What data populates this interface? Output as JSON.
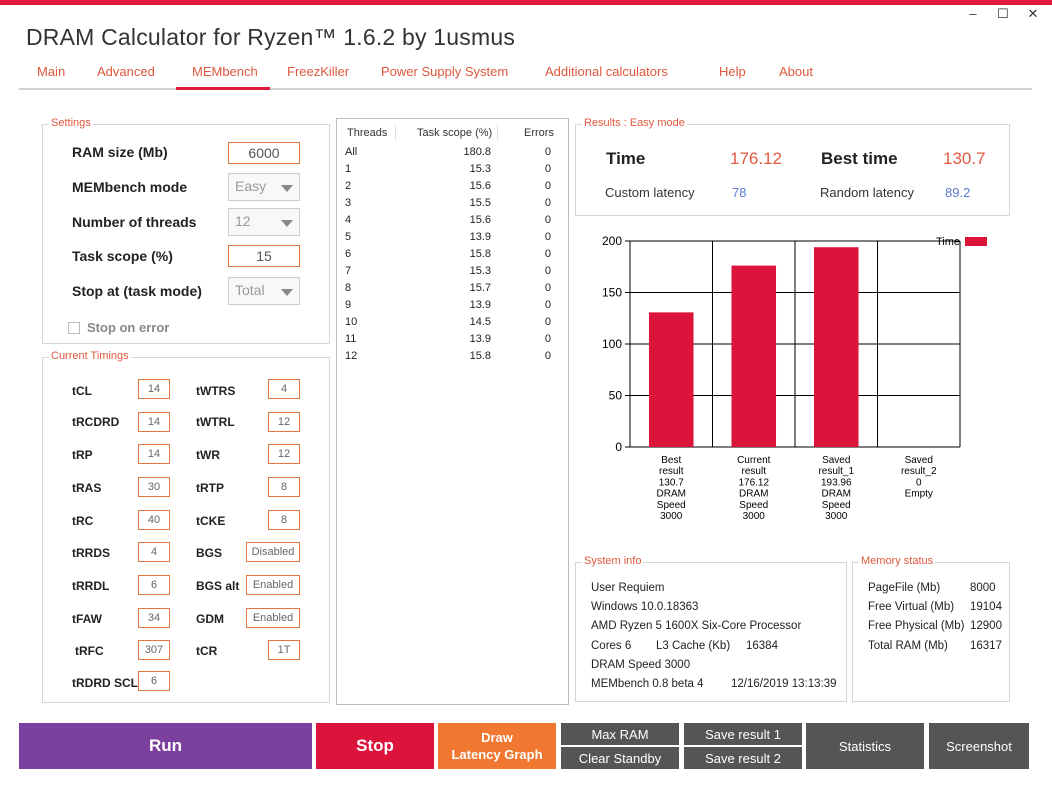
{
  "app": {
    "title": "DRAM Calculator for Ryzen™ 1.6.2 by 1usmus",
    "window_controls": [
      "–",
      "☐",
      "✕"
    ]
  },
  "tabs": [
    {
      "label": "Main"
    },
    {
      "label": "Advanced"
    },
    {
      "label": "MEMbench",
      "active": true
    },
    {
      "label": "FreezKiller"
    },
    {
      "label": "Power Supply System"
    },
    {
      "label": "Additional calculators"
    },
    {
      "label": "Help"
    },
    {
      "label": "About"
    }
  ],
  "settings": {
    "title": "Settings",
    "ram_size_label": "RAM size (Mb)",
    "ram_size_value": "6000",
    "mode_label": "MEMbench mode",
    "mode_value": "Easy",
    "threads_label": "Number of threads",
    "threads_value": "12",
    "task_scope_label": "Task scope (%)",
    "task_scope_value": "15",
    "stop_at_label": "Stop at (task mode)",
    "stop_at_value": "Total",
    "stop_on_error_label": "Stop on error"
  },
  "timings": {
    "title": "Current Timings",
    "left": [
      {
        "label": "tCL",
        "value": "14"
      },
      {
        "label": "tRCDRD",
        "value": "14"
      },
      {
        "label": "tRP",
        "value": "14"
      },
      {
        "label": "tRAS",
        "value": "30"
      },
      {
        "label": "tRC",
        "value": "40"
      },
      {
        "label": "tRRDS",
        "value": "4"
      },
      {
        "label": "tRRDL",
        "value": "6"
      },
      {
        "label": "tFAW",
        "value": "34"
      },
      {
        "label": "tRFC",
        "value": "307"
      },
      {
        "label": "tRDRD SCL",
        "value": "6"
      }
    ],
    "right": [
      {
        "label": "tWTRS",
        "value": "4"
      },
      {
        "label": "tWTRL",
        "value": "12"
      },
      {
        "label": "tWR",
        "value": "12"
      },
      {
        "label": "tRTP",
        "value": "8"
      },
      {
        "label": "tCKE",
        "value": "8"
      },
      {
        "label": "BGS",
        "value": "Disabled"
      },
      {
        "label": "BGS alt",
        "value": "Enabled"
      },
      {
        "label": "GDM",
        "value": "Enabled"
      },
      {
        "label": "tCR",
        "value": "1T"
      }
    ]
  },
  "threads_table": {
    "headers": [
      "Threads",
      "Task scope (%)",
      "Errors"
    ],
    "rows": [
      [
        "All",
        "180.8",
        "0"
      ],
      [
        "1",
        "15.3",
        "0"
      ],
      [
        "2",
        "15.6",
        "0"
      ],
      [
        "3",
        "15.5",
        "0"
      ],
      [
        "4",
        "15.6",
        "0"
      ],
      [
        "5",
        "13.9",
        "0"
      ],
      [
        "6",
        "15.8",
        "0"
      ],
      [
        "7",
        "15.3",
        "0"
      ],
      [
        "8",
        "15.7",
        "0"
      ],
      [
        "9",
        "13.9",
        "0"
      ],
      [
        "10",
        "14.5",
        "0"
      ],
      [
        "11",
        "13.9",
        "0"
      ],
      [
        "12",
        "15.8",
        "0"
      ]
    ]
  },
  "results": {
    "title": "Results : Easy mode",
    "time_label": "Time",
    "time_value": "176.12",
    "best_label": "Best time",
    "best_value": "130.7",
    "custom_latency_label": "Custom latency",
    "custom_latency_value": "78",
    "random_latency_label": "Random latency",
    "random_latency_value": "89.2"
  },
  "chart_data": {
    "type": "bar",
    "legend": "Time",
    "legend_position": "top-right",
    "bar_color": "#dc143c",
    "grid": true,
    "ylim": [
      0,
      200
    ],
    "yticks": [
      0,
      50,
      100,
      150,
      200
    ],
    "categories": [
      [
        "Best",
        "result",
        "130.7",
        "DRAM",
        "Speed",
        "3000"
      ],
      [
        "Current",
        "result",
        "176.12",
        "DRAM",
        "Speed",
        "3000"
      ],
      [
        "Saved",
        "result_1",
        "193.96",
        "DRAM",
        "Speed",
        "3000"
      ],
      [
        "Saved",
        "result_2",
        "0",
        "Empty"
      ]
    ],
    "values": [
      130.7,
      176.12,
      193.96,
      0
    ]
  },
  "system_info": {
    "title": "System info",
    "user": "User Requiem",
    "os": "Windows 10.0.18363",
    "cpu": "AMD Ryzen 5 1600X Six-Core Processor",
    "cores": "Cores 6",
    "l3": "L3 Cache (Kb)",
    "l3_value": "16384",
    "dram_speed": "DRAM Speed 3000",
    "membench": "MEMbench 0.8 beta 4",
    "datetime": "12/16/2019 13:13:39"
  },
  "memory_status": {
    "title": "Memory status",
    "rows": [
      {
        "label": "PageFile (Mb)",
        "value": "8000"
      },
      {
        "label": "Free Virtual (Mb)",
        "value": "19104"
      },
      {
        "label": "Free Physical (Mb)",
        "value": "12900"
      },
      {
        "label": "Total RAM (Mb)",
        "value": "16317"
      }
    ]
  },
  "buttons": {
    "run": "Run",
    "stop": "Stop",
    "draw_line1": "Draw",
    "draw_line2": "Latency Graph",
    "max_ram": "Max RAM",
    "clear_standby": "Clear Standby",
    "save1": "Save result 1",
    "save2": "Save result 2",
    "statistics": "Statistics",
    "screenshot": "Screenshot"
  },
  "colors": {
    "accent_red": "#e0193d",
    "accent_orange": "#e0583d",
    "run_purple": "#7b3f9e",
    "stop_red": "#dc143c",
    "draw_orange": "#f07830",
    "gray_button": "#555555"
  }
}
